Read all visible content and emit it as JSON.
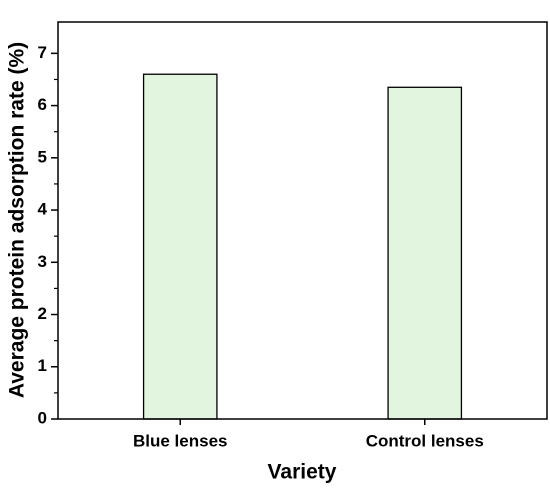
{
  "chart_data": {
    "type": "bar",
    "x_label": "Variety",
    "y_label": "Average protein adsorption rate (%)",
    "categories": [
      "Blue lenses",
      "Control lenses"
    ],
    "values": [
      6.6,
      6.35
    ],
    "color": "#e2f6df",
    "ylim": [
      0,
      7.6
    ],
    "yticks": [
      0,
      1,
      2,
      3,
      4,
      5,
      6,
      7
    ]
  }
}
